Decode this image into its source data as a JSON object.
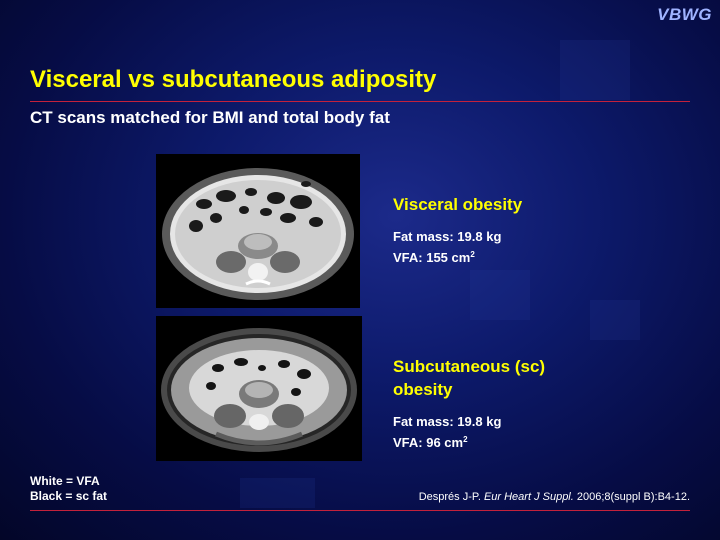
{
  "logo": "VBWG",
  "title": "Visceral vs subcutaneous adiposity",
  "subtitle": "CT scans matched for BMI and total body fat",
  "visceral": {
    "heading": "Visceral obesity",
    "fat_mass": "Fat mass: 19.8 kg",
    "vfa_label": "VFA: 155 cm",
    "vfa_unit_sup": "2"
  },
  "subcutaneous": {
    "heading_line1": "Subcutaneous (sc)",
    "heading_line2": "obesity",
    "fat_mass": "Fat mass: 19.8 kg",
    "vfa_label": "VFA: 96 cm",
    "vfa_unit_sup": "2"
  },
  "key": {
    "white": "White = VFA",
    "black": "Black = sc fat"
  },
  "reference": {
    "authors": "Després J-P. ",
    "journal": "Eur Heart J Suppl.",
    "details": " 2006;8(suppl B):B4-12."
  },
  "colors": {
    "title": "#ffff00",
    "rule": "#c4213b",
    "background": "#0d1a6b"
  }
}
